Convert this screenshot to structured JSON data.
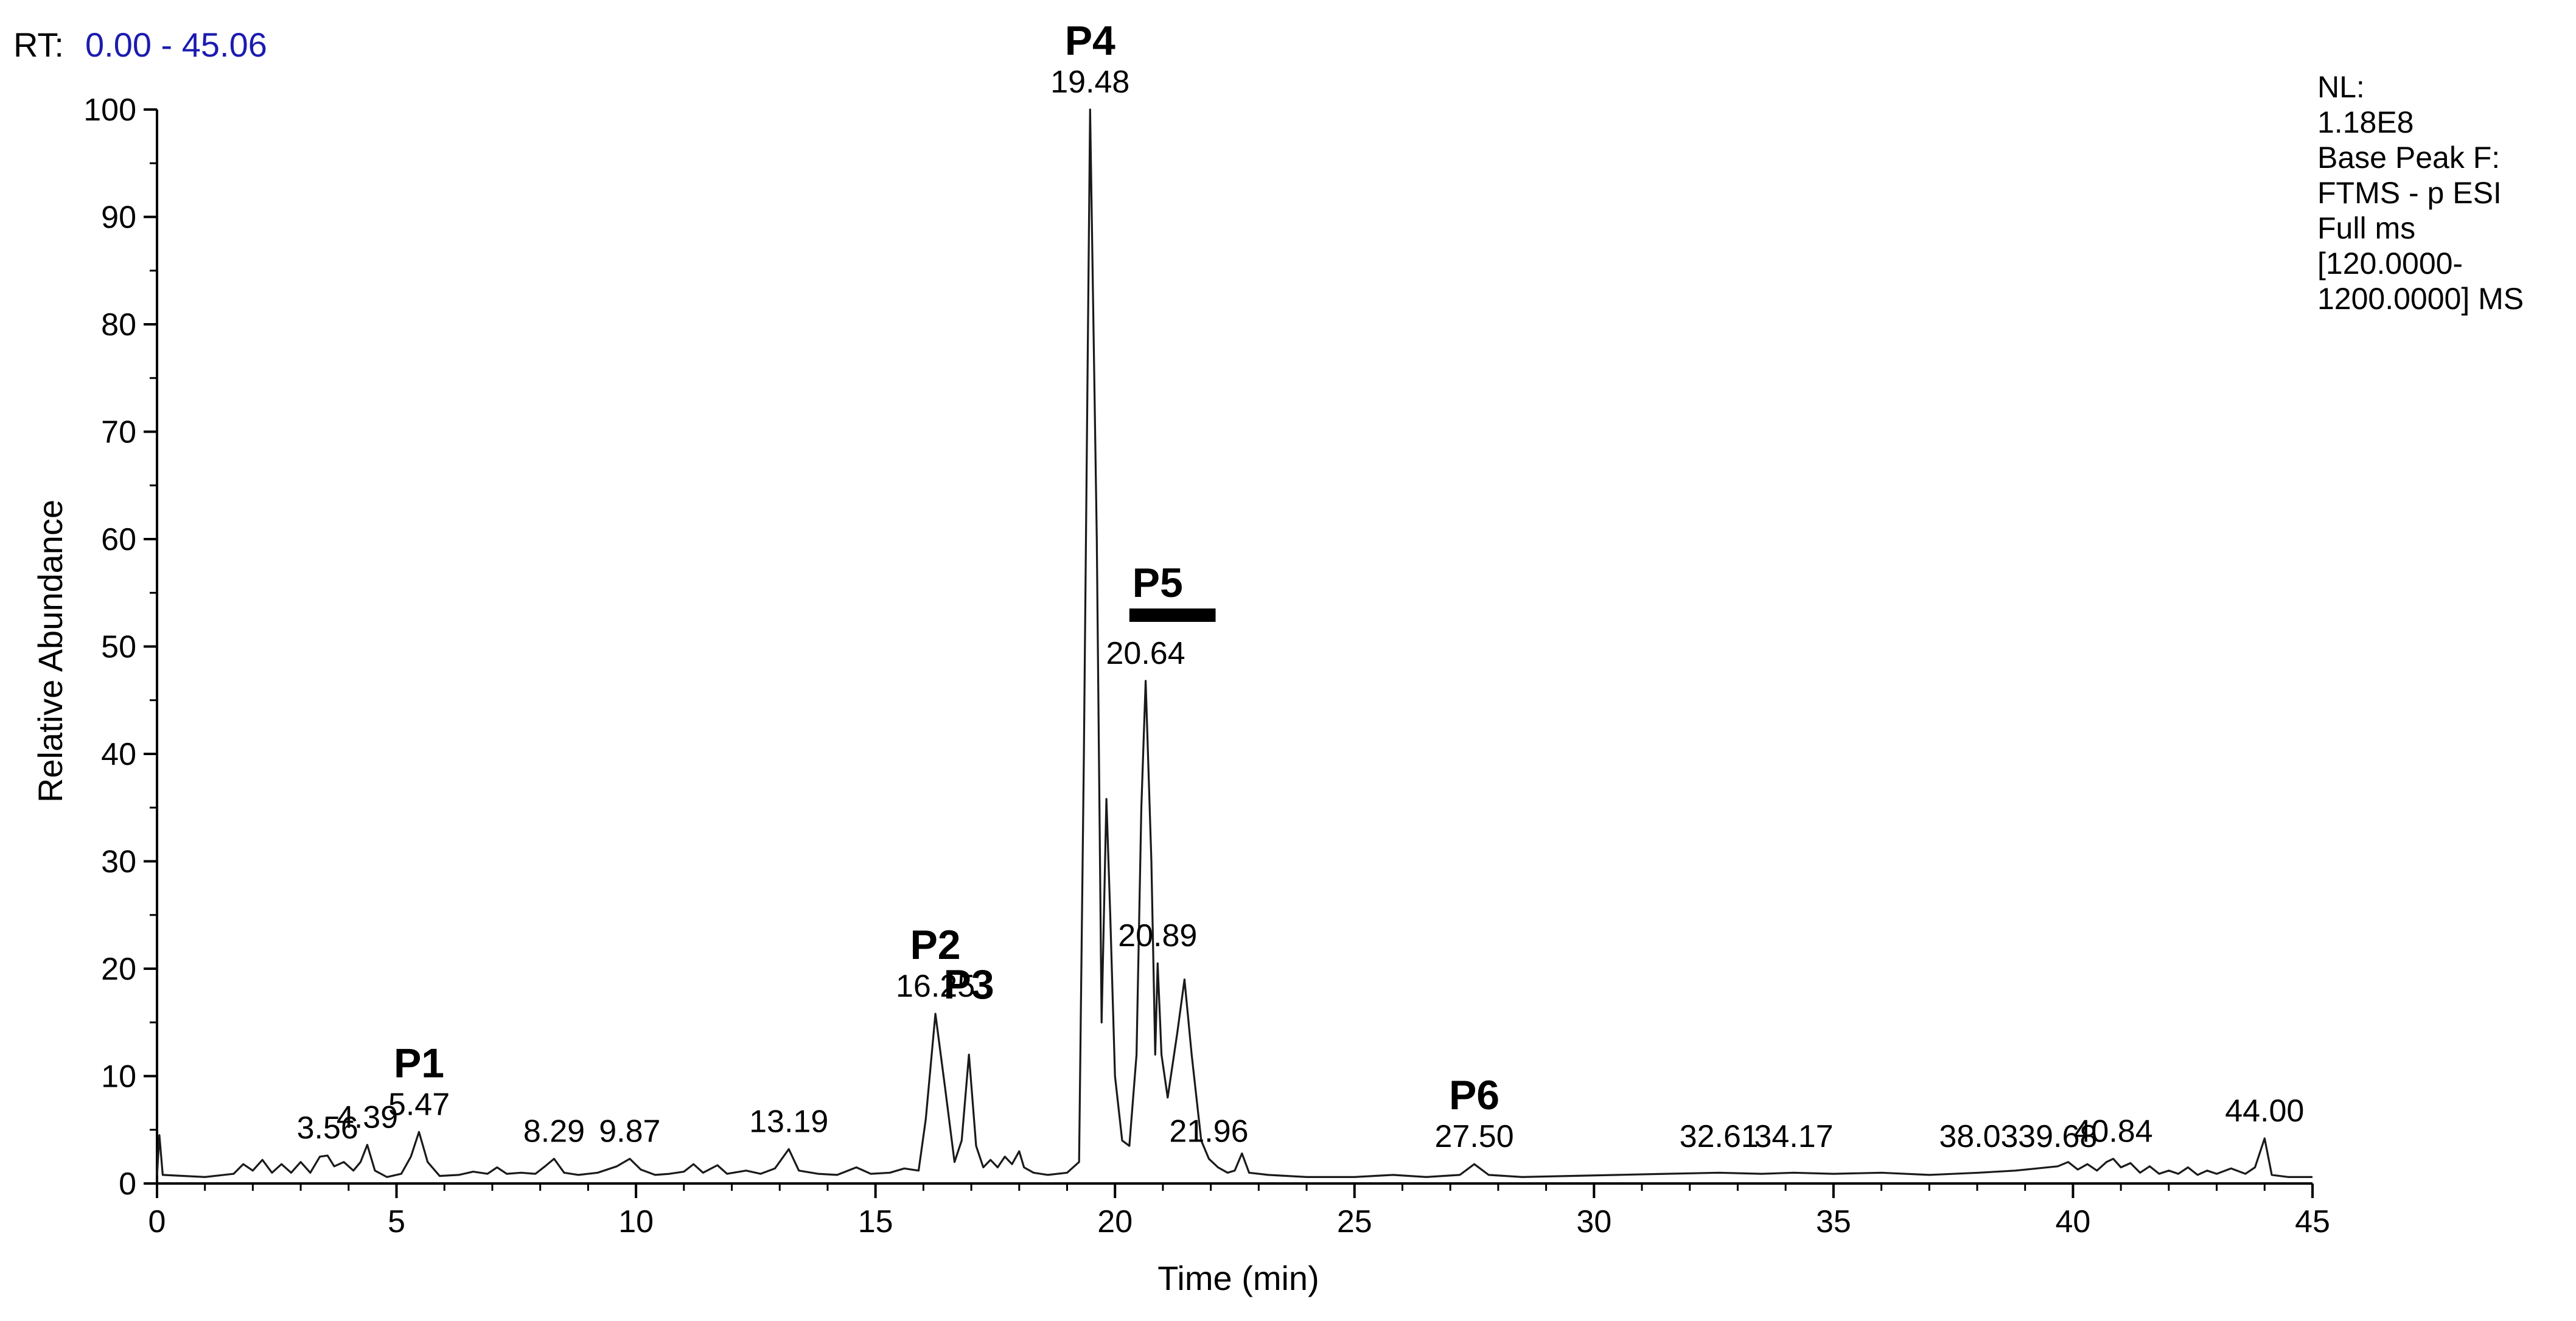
{
  "header": {
    "rt_label": "RT:",
    "rt_range": "0.00 - 45.06"
  },
  "info_box": {
    "lines": [
      "NL:",
      "1.18E8",
      "Base Peak F:",
      "FTMS - p ESI",
      "Full ms",
      "[120.0000-",
      "1200.0000]  MS"
    ]
  },
  "chart_data": {
    "type": "line",
    "xlabel": "Time (min)",
    "ylabel": "Relative Abundance",
    "xlim": [
      0,
      45
    ],
    "ylim": [
      0,
      100
    ],
    "x_ticks": [
      0,
      5,
      10,
      15,
      20,
      25,
      30,
      35,
      40,
      45
    ],
    "y_ticks": [
      0,
      10,
      20,
      30,
      40,
      50,
      60,
      70,
      80,
      90,
      100
    ],
    "grid": false,
    "series": [
      {
        "values_xy": [
          [
            0,
            0.7
          ],
          [
            0.05,
            4.5
          ],
          [
            0.12,
            0.8
          ],
          [
            1,
            0.6
          ],
          [
            1.6,
            0.9
          ],
          [
            1.8,
            1.8
          ],
          [
            2.0,
            1.2
          ],
          [
            2.2,
            2.2
          ],
          [
            2.4,
            1.0
          ],
          [
            2.6,
            1.8
          ],
          [
            2.8,
            1.0
          ],
          [
            3.0,
            2.0
          ],
          [
            3.2,
            1.0
          ],
          [
            3.4,
            2.5
          ],
          [
            3.56,
            2.6
          ],
          [
            3.7,
            1.6
          ],
          [
            3.9,
            2.0
          ],
          [
            4.1,
            1.2
          ],
          [
            4.25,
            2.0
          ],
          [
            4.39,
            3.6
          ],
          [
            4.55,
            1.2
          ],
          [
            4.8,
            0.6
          ],
          [
            5.1,
            0.9
          ],
          [
            5.3,
            2.5
          ],
          [
            5.47,
            4.8
          ],
          [
            5.65,
            2.0
          ],
          [
            5.9,
            0.7
          ],
          [
            6.3,
            0.8
          ],
          [
            6.6,
            1.1
          ],
          [
            6.9,
            0.9
          ],
          [
            7.1,
            1.5
          ],
          [
            7.3,
            0.9
          ],
          [
            7.6,
            1.0
          ],
          [
            7.9,
            0.9
          ],
          [
            8.1,
            1.6
          ],
          [
            8.29,
            2.3
          ],
          [
            8.5,
            1.0
          ],
          [
            8.8,
            0.8
          ],
          [
            9.2,
            1.0
          ],
          [
            9.6,
            1.6
          ],
          [
            9.87,
            2.3
          ],
          [
            10.1,
            1.3
          ],
          [
            10.4,
            0.8
          ],
          [
            10.7,
            0.9
          ],
          [
            11.0,
            1.1
          ],
          [
            11.2,
            1.8
          ],
          [
            11.4,
            1.0
          ],
          [
            11.7,
            1.7
          ],
          [
            11.9,
            0.9
          ],
          [
            12.3,
            1.2
          ],
          [
            12.6,
            0.9
          ],
          [
            12.9,
            1.4
          ],
          [
            13.19,
            3.2
          ],
          [
            13.4,
            1.2
          ],
          [
            13.8,
            0.9
          ],
          [
            14.2,
            0.8
          ],
          [
            14.6,
            1.5
          ],
          [
            14.9,
            0.9
          ],
          [
            15.3,
            1.0
          ],
          [
            15.6,
            1.4
          ],
          [
            15.9,
            1.2
          ],
          [
            16.05,
            6.0
          ],
          [
            16.25,
            15.8
          ],
          [
            16.45,
            9.0
          ],
          [
            16.65,
            2.0
          ],
          [
            16.8,
            4.0
          ],
          [
            16.95,
            12.0
          ],
          [
            17.1,
            3.5
          ],
          [
            17.25,
            1.5
          ],
          [
            17.4,
            2.2
          ],
          [
            17.55,
            1.5
          ],
          [
            17.7,
            2.5
          ],
          [
            17.85,
            1.8
          ],
          [
            18.0,
            3.0
          ],
          [
            18.1,
            1.5
          ],
          [
            18.3,
            1.0
          ],
          [
            18.6,
            0.8
          ],
          [
            19.0,
            1.0
          ],
          [
            19.25,
            2.0
          ],
          [
            19.35,
            40.0
          ],
          [
            19.48,
            100
          ],
          [
            19.62,
            60.0
          ],
          [
            19.72,
            15.0
          ],
          [
            19.82,
            35.8
          ],
          [
            19.9,
            25.0
          ],
          [
            20.0,
            10.0
          ],
          [
            20.15,
            4.0
          ],
          [
            20.3,
            3.5
          ],
          [
            20.45,
            12.0
          ],
          [
            20.55,
            35.0
          ],
          [
            20.64,
            46.8
          ],
          [
            20.76,
            30.0
          ],
          [
            20.84,
            12.0
          ],
          [
            20.89,
            20.5
          ],
          [
            20.97,
            12.0
          ],
          [
            21.1,
            8.0
          ],
          [
            21.3,
            14.0
          ],
          [
            21.45,
            19.0
          ],
          [
            21.6,
            12.0
          ],
          [
            21.8,
            4.0
          ],
          [
            21.96,
            2.3
          ],
          [
            22.15,
            1.5
          ],
          [
            22.35,
            1.0
          ],
          [
            22.5,
            1.2
          ],
          [
            22.65,
            2.8
          ],
          [
            22.8,
            1.0
          ],
          [
            23.2,
            0.8
          ],
          [
            23.6,
            0.7
          ],
          [
            24.0,
            0.6
          ],
          [
            25.0,
            0.6
          ],
          [
            25.8,
            0.8
          ],
          [
            26.5,
            0.6
          ],
          [
            27.2,
            0.8
          ],
          [
            27.5,
            1.8
          ],
          [
            27.8,
            0.8
          ],
          [
            28.5,
            0.6
          ],
          [
            29.5,
            0.7
          ],
          [
            30.5,
            0.8
          ],
          [
            31.5,
            0.9
          ],
          [
            32.61,
            1.0
          ],
          [
            33.5,
            0.9
          ],
          [
            34.17,
            1.0
          ],
          [
            35.0,
            0.9
          ],
          [
            36.0,
            1.0
          ],
          [
            37.0,
            0.8
          ],
          [
            38.03,
            1.0
          ],
          [
            38.8,
            1.2
          ],
          [
            39.68,
            1.6
          ],
          [
            39.9,
            2.0
          ],
          [
            40.1,
            1.3
          ],
          [
            40.3,
            1.8
          ],
          [
            40.5,
            1.2
          ],
          [
            40.7,
            2.0
          ],
          [
            40.84,
            2.3
          ],
          [
            41.0,
            1.5
          ],
          [
            41.2,
            1.9
          ],
          [
            41.4,
            1.0
          ],
          [
            41.6,
            1.6
          ],
          [
            41.8,
            0.9
          ],
          [
            42.0,
            1.2
          ],
          [
            42.2,
            0.9
          ],
          [
            42.4,
            1.5
          ],
          [
            42.6,
            0.8
          ],
          [
            42.8,
            1.2
          ],
          [
            43.0,
            0.9
          ],
          [
            43.3,
            1.4
          ],
          [
            43.6,
            0.9
          ],
          [
            43.8,
            1.5
          ],
          [
            44.0,
            4.2
          ],
          [
            44.15,
            0.8
          ],
          [
            44.5,
            0.6
          ],
          [
            45.0,
            0.6
          ]
        ]
      }
    ],
    "peak_labels": [
      {
        "x": 3.56,
        "y": 2.6,
        "text": "3.56"
      },
      {
        "x": 4.39,
        "y": 3.6,
        "text": "4.39"
      },
      {
        "x": 5.47,
        "y": 4.8,
        "text": "5.47"
      },
      {
        "x": 8.29,
        "y": 2.3,
        "text": "8.29"
      },
      {
        "x": 9.87,
        "y": 2.3,
        "text": "9.87"
      },
      {
        "x": 13.19,
        "y": 3.2,
        "text": "13.19"
      },
      {
        "x": 16.25,
        "y": 15.8,
        "text": "16.25"
      },
      {
        "x": 19.48,
        "y": 100,
        "text": "19.48"
      },
      {
        "x": 20.64,
        "y": 46.8,
        "text": "20.64"
      },
      {
        "x": 20.89,
        "y": 20.5,
        "text": "20.89"
      },
      {
        "x": 21.96,
        "y": 2.3,
        "text": "21.96"
      },
      {
        "x": 27.5,
        "y": 1.8,
        "text": "27.50"
      },
      {
        "x": 32.61,
        "y": 1.0,
        "text": "32.61"
      },
      {
        "x": 34.17,
        "y": 1.0,
        "text": "34.17"
      },
      {
        "x": 38.03,
        "y": 1.0,
        "text": "38.03"
      },
      {
        "x": 39.68,
        "y": 1.6,
        "text": "39.68"
      },
      {
        "x": 40.84,
        "y": 2.3,
        "text": "40.84"
      },
      {
        "x": 44.0,
        "y": 4.2,
        "text": "44.00"
      }
    ],
    "annotations": [
      {
        "text": "P1",
        "x": 5.47
      },
      {
        "text": "P2",
        "x": 16.25
      },
      {
        "text": "P3",
        "x": 16.95
      },
      {
        "text": "P4",
        "x": 19.48
      },
      {
        "text": "P5",
        "x": 20.89,
        "bar": [
          20.3,
          22.1
        ]
      },
      {
        "text": "P6",
        "x": 27.5
      }
    ]
  }
}
